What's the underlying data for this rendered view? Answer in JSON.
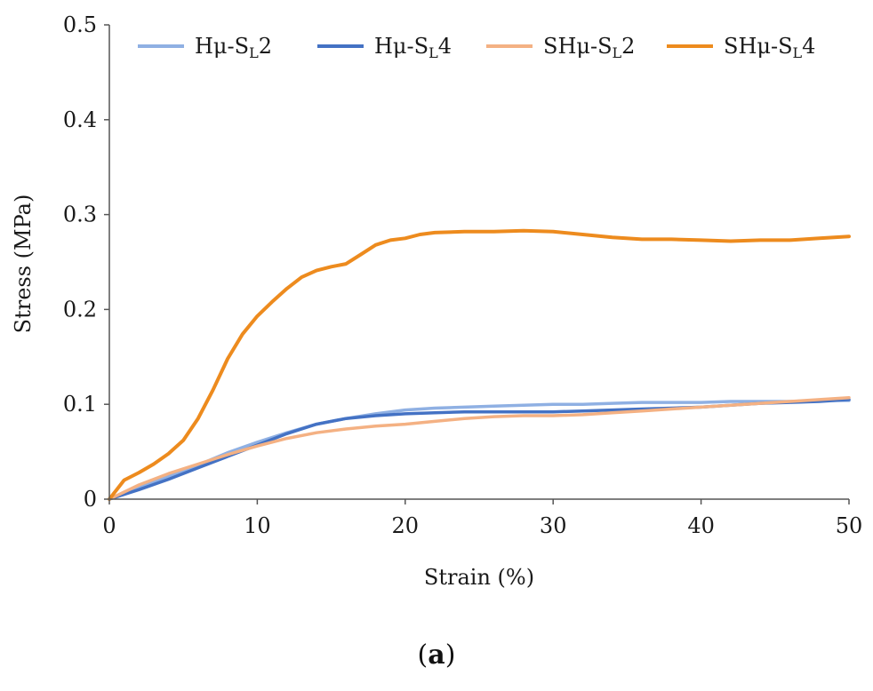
{
  "chart_data": {
    "type": "line",
    "title": "",
    "xlabel": "Strain (%)",
    "ylabel": "Stress (MPa)",
    "xlim": [
      0,
      50
    ],
    "ylim": [
      0,
      0.5
    ],
    "xticks": [
      "0",
      "10",
      "20",
      "30",
      "40",
      "50"
    ],
    "yticks": [
      "0",
      "0.1",
      "0.2",
      "0.3",
      "0.4",
      "0.5"
    ],
    "grid": false,
    "legend_position": "top",
    "series": [
      {
        "name": "Hμ-SL2",
        "label_main": "Hμ-S",
        "label_sub": "L",
        "label_tail": "2",
        "color": "#8fb0e3",
        "x": [
          0,
          2,
          4,
          6,
          8,
          10,
          12,
          14,
          16,
          18,
          20,
          22,
          24,
          26,
          28,
          30,
          32,
          34,
          36,
          38,
          40,
          42,
          44,
          46,
          48,
          50
        ],
        "y": [
          0,
          0.012,
          0.024,
          0.036,
          0.049,
          0.06,
          0.07,
          0.079,
          0.085,
          0.09,
          0.094,
          0.096,
          0.097,
          0.098,
          0.099,
          0.1,
          0.1,
          0.101,
          0.102,
          0.102,
          0.102,
          0.103,
          0.103,
          0.103,
          0.104,
          0.104
        ]
      },
      {
        "name": "Hμ-SL4",
        "label_main": "Hμ-S",
        "label_sub": "L",
        "label_tail": "4",
        "color": "#4472c4",
        "x": [
          0,
          2,
          4,
          6,
          8,
          10,
          12,
          14,
          16,
          18,
          20,
          22,
          24,
          26,
          28,
          30,
          32,
          34,
          36,
          38,
          40,
          42,
          44,
          46,
          48,
          50
        ],
        "y": [
          0,
          0.01,
          0.021,
          0.033,
          0.045,
          0.057,
          0.069,
          0.079,
          0.085,
          0.088,
          0.09,
          0.091,
          0.092,
          0.092,
          0.092,
          0.092,
          0.093,
          0.094,
          0.095,
          0.096,
          0.097,
          0.099,
          0.101,
          0.102,
          0.103,
          0.105
        ]
      },
      {
        "name": "SHμ-SL2",
        "label_main": "SHμ-S",
        "label_sub": "L",
        "label_tail": "2",
        "color": "#f4b183",
        "x": [
          0,
          2,
          4,
          6,
          8,
          10,
          12,
          14,
          16,
          18,
          20,
          22,
          24,
          26,
          28,
          30,
          32,
          34,
          36,
          38,
          40,
          42,
          44,
          46,
          48,
          50
        ],
        "y": [
          0,
          0.015,
          0.027,
          0.037,
          0.047,
          0.056,
          0.064,
          0.07,
          0.074,
          0.077,
          0.079,
          0.082,
          0.085,
          0.087,
          0.088,
          0.088,
          0.089,
          0.091,
          0.093,
          0.095,
          0.097,
          0.099,
          0.101,
          0.103,
          0.105,
          0.107
        ]
      },
      {
        "name": "SHμ-SL4",
        "label_main": "SHμ-S",
        "label_sub": "L",
        "label_tail": "4",
        "color": "#ed8b1e",
        "x": [
          0,
          1,
          2,
          3,
          4,
          5,
          6,
          7,
          8,
          9,
          10,
          11,
          12,
          13,
          14,
          15,
          16,
          17,
          18,
          19,
          20,
          21,
          22,
          24,
          26,
          28,
          30,
          32,
          34,
          36,
          38,
          40,
          42,
          44,
          46,
          48,
          50
        ],
        "y": [
          0,
          0.02,
          0.028,
          0.037,
          0.048,
          0.062,
          0.085,
          0.115,
          0.148,
          0.174,
          0.193,
          0.208,
          0.222,
          0.234,
          0.241,
          0.245,
          0.248,
          0.258,
          0.268,
          0.273,
          0.275,
          0.279,
          0.281,
          0.282,
          0.282,
          0.283,
          0.282,
          0.279,
          0.276,
          0.274,
          0.274,
          0.273,
          0.272,
          0.273,
          0.273,
          0.275,
          0.277
        ]
      }
    ]
  },
  "caption": {
    "open": "(",
    "letter": "a",
    "close": ")"
  }
}
